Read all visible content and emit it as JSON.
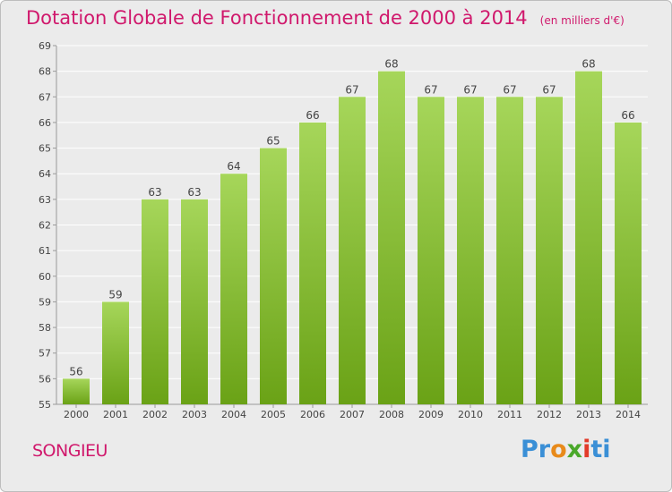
{
  "title": "Dotation Globale de Fonctionnement de 2000 à 2014",
  "subtitle": "(en milliers d'€)",
  "commune": "SONGIEU",
  "logo": {
    "text": "Proxiti",
    "colors": [
      "#3a8fd6",
      "#e88a1a",
      "#4aa82a",
      "#e23b2a",
      "#3a8fd6"
    ]
  },
  "colors": {
    "title": "#d0186c",
    "bar_top": "#a6d65a",
    "bar_bottom": "#6aa216",
    "background": "#ebebeb",
    "grid": "#ffffff"
  },
  "chart_data": {
    "type": "bar",
    "categories": [
      "2000",
      "2001",
      "2002",
      "2003",
      "2004",
      "2005",
      "2006",
      "2007",
      "2008",
      "2009",
      "2010",
      "2011",
      "2012",
      "2013",
      "2014"
    ],
    "values": [
      56,
      59,
      63,
      63,
      64,
      65,
      66,
      67,
      68,
      67,
      67,
      67,
      67,
      68,
      66
    ],
    "data_labels": [
      "56",
      "59",
      "63",
      "63",
      "64",
      "65",
      "66",
      "67",
      "68",
      "67",
      "67",
      "67",
      "67",
      "68",
      "66"
    ],
    "ylim": [
      55,
      69
    ],
    "yticks": [
      55,
      56,
      57,
      58,
      59,
      60,
      61,
      62,
      63,
      64,
      65,
      66,
      67,
      68,
      69
    ],
    "xlabel": "",
    "ylabel": "",
    "grid": true,
    "legend": "none"
  }
}
